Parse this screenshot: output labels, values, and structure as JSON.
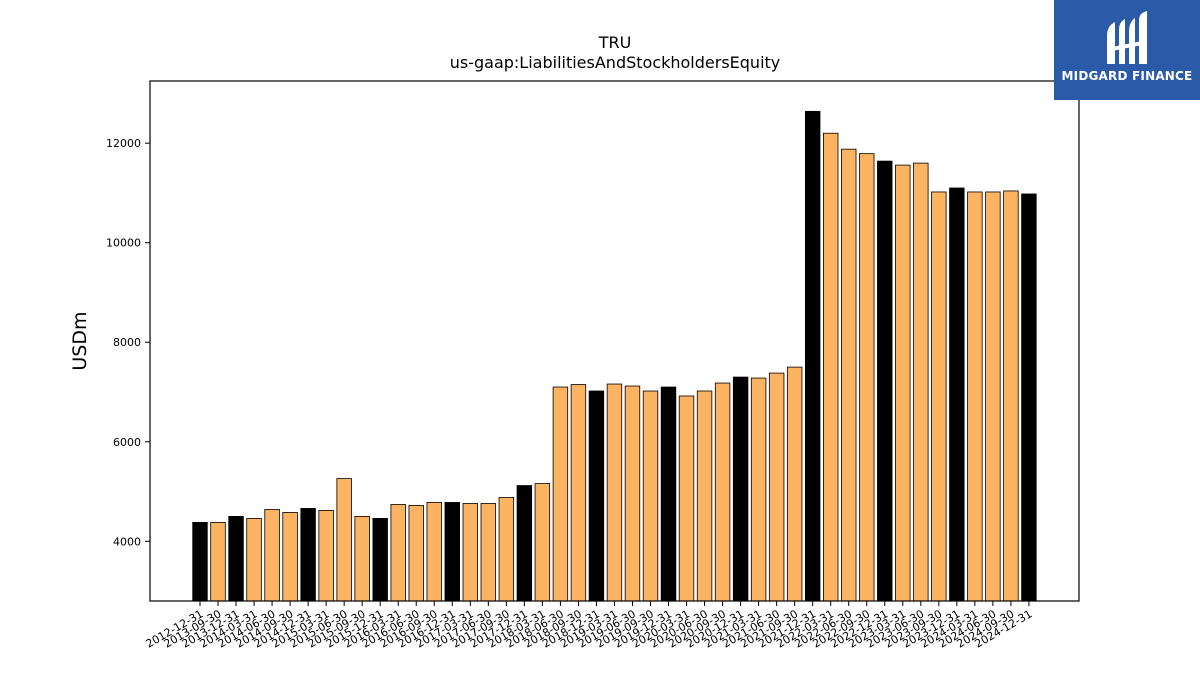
{
  "logo": {
    "text": "MIDGARD FINANCE"
  },
  "colors": {
    "highlight": "#000000",
    "bar": "#fdb462",
    "edge": "#000000"
  },
  "chart_data": {
    "type": "bar",
    "title": "TRU",
    "subtitle": "us-gaap:LiabilitiesAndStockholdersEquity",
    "xlabel": "",
    "ylabel": "USDm",
    "ylim": [
      2800,
      13250
    ],
    "yticks": [
      4000,
      6000,
      8000,
      10000,
      12000
    ],
    "grid": false,
    "categories": [
      "2012-12-31",
      "2013-09-30",
      "2013-12-31",
      "2014-03-31",
      "2014-06-30",
      "2014-09-30",
      "2014-12-31",
      "2015-03-31",
      "2015-06-30",
      "2015-09-30",
      "2015-12-31",
      "2016-03-31",
      "2016-06-30",
      "2016-09-30",
      "2016-12-31",
      "2017-03-31",
      "2017-06-30",
      "2017-09-30",
      "2017-12-31",
      "2018-03-31",
      "2018-06-30",
      "2018-09-30",
      "2018-12-31",
      "2019-03-31",
      "2019-06-30",
      "2019-09-30",
      "2019-12-31",
      "2020-03-31",
      "2020-06-30",
      "2020-09-30",
      "2020-12-31",
      "2021-03-31",
      "2021-06-30",
      "2021-09-30",
      "2021-12-31",
      "2022-03-31",
      "2022-06-30",
      "2022-09-30",
      "2022-12-31",
      "2023-03-31",
      "2023-06-30",
      "2023-09-30",
      "2023-12-31",
      "2024-03-31",
      "2024-06-30",
      "2024-09-30",
      "2024-12-31"
    ],
    "values": [
      4380,
      4380,
      4500,
      4460,
      4640,
      4580,
      4660,
      4620,
      5260,
      4500,
      4460,
      4740,
      4720,
      4780,
      4780,
      4760,
      4760,
      4880,
      5120,
      5160,
      7100,
      7150,
      7020,
      7160,
      7120,
      7020,
      7100,
      6920,
      7020,
      7180,
      7300,
      7280,
      7380,
      7500,
      12640,
      12200,
      11880,
      11790,
      11640,
      11560,
      11600,
      11020,
      11100,
      11020,
      11020,
      11040,
      10980
    ],
    "highlighted": [
      true,
      false,
      true,
      false,
      false,
      false,
      true,
      false,
      false,
      false,
      true,
      false,
      false,
      false,
      true,
      false,
      false,
      false,
      true,
      false,
      false,
      false,
      true,
      false,
      false,
      false,
      true,
      false,
      false,
      false,
      true,
      false,
      false,
      false,
      true,
      false,
      false,
      false,
      true,
      false,
      false,
      false,
      true,
      false,
      false,
      false,
      true
    ]
  }
}
